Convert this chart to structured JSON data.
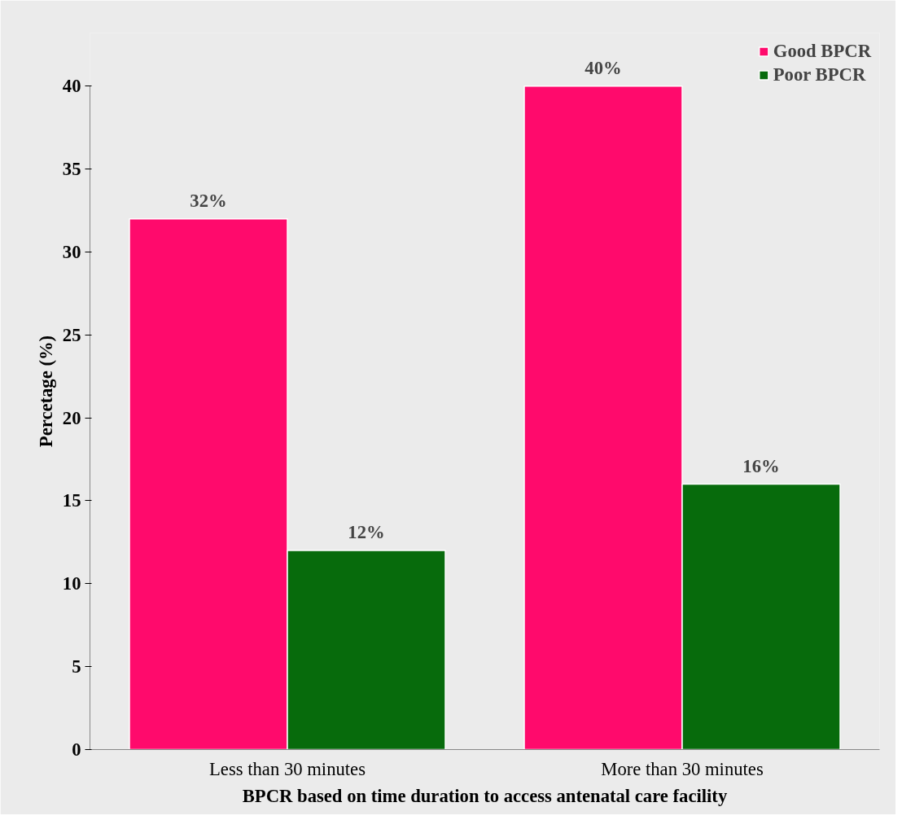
{
  "chart_data": {
    "type": "bar",
    "xlabel": "BPCR based on time duration to access antenatal care facility",
    "ylabel": "Percetage (%)",
    "categories": [
      "Less than 30 minutes",
      "More than 30 minutes"
    ],
    "series": [
      {
        "name": "Good BPCR",
        "color": "#ff0a6c",
        "values": [
          32,
          40
        ],
        "value_labels": [
          "32%",
          "40%"
        ]
      },
      {
        "name": "Poor BPCR",
        "color": "#076b0c",
        "values": [
          12,
          16
        ],
        "value_labels": [
          "12%",
          "16%"
        ]
      }
    ],
    "ylim": [
      0,
      40
    ],
    "yticks": [
      0,
      5,
      10,
      15,
      20,
      25,
      30,
      35,
      40
    ],
    "grid": false,
    "legend": "top right"
  }
}
